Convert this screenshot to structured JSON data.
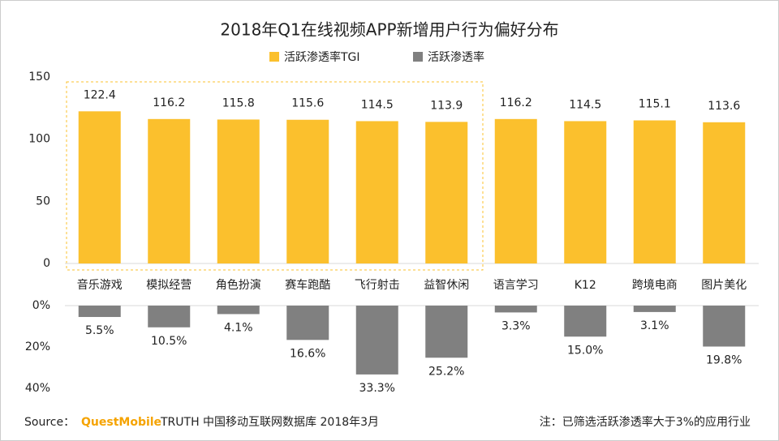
{
  "chart_data": [
    {
      "type": "bar",
      "title": "2018年Q1在线视频APP新增用户行为偏好分布",
      "categories": [
        "音乐游戏",
        "模拟经营",
        "角色扮演",
        "赛车跑酷",
        "飞行射击",
        "益智休闲",
        "语言学习",
        "K12",
        "跨境电商",
        "图片美化"
      ],
      "series": [
        {
          "name": "活跃渗透率TGI",
          "color": "#fbc02d",
          "values": [
            122.4,
            116.2,
            115.8,
            115.6,
            114.5,
            113.9,
            116.2,
            114.5,
            115.1,
            113.6
          ]
        }
      ],
      "ylim": [
        0,
        150
      ],
      "yticks": [
        0,
        50,
        100,
        150
      ]
    },
    {
      "type": "bar",
      "inverted": true,
      "series": [
        {
          "name": "活跃渗透率",
          "color": "#808080",
          "values": [
            5.5,
            10.5,
            4.1,
            16.6,
            33.3,
            25.2,
            3.3,
            15.0,
            3.1,
            19.8
          ],
          "value_labels": [
            "5.5%",
            "10.5%",
            "4.1%",
            "16.6%",
            "33.3%",
            "25.2%",
            "3.3%",
            "15.0%",
            "3.1%",
            "19.8%"
          ]
        }
      ],
      "ylim": [
        0,
        40
      ],
      "yticks": [
        {
          "value": 0,
          "label": "0%"
        },
        {
          "value": 20,
          "label": "20%"
        },
        {
          "value": 40,
          "label": "40%"
        }
      ]
    }
  ],
  "source": {
    "prefix": "Source：",
    "brand": "QuestMobile",
    "text": "TRUTH 中国移动互联网数据库 2018年3月",
    "note": "注：已筛选活跃渗透率大于3%的应用行业"
  }
}
